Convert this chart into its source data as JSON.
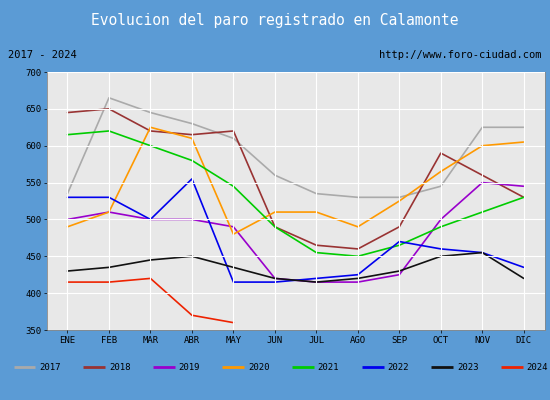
{
  "title": "Evolucion del paro registrado en Calamonte",
  "title_bg": "#5b9bd5",
  "subtitle_left": "2017 - 2024",
  "subtitle_right": "http://www.foro-ciudad.com",
  "months": [
    "ENE",
    "FEB",
    "MAR",
    "ABR",
    "MAY",
    "JUN",
    "JUL",
    "AGO",
    "SEP",
    "OCT",
    "NOV",
    "DIC"
  ],
  "ylim": [
    350,
    700
  ],
  "yticks": [
    350,
    400,
    450,
    500,
    550,
    600,
    650,
    700
  ],
  "series": {
    "2017": {
      "color": "#aaaaaa",
      "data": [
        535,
        665,
        645,
        630,
        610,
        560,
        535,
        530,
        530,
        545,
        625,
        625
      ]
    },
    "2018": {
      "color": "#993333",
      "data": [
        645,
        650,
        620,
        615,
        620,
        490,
        465,
        460,
        490,
        590,
        560,
        530
      ]
    },
    "2019": {
      "color": "#9900cc",
      "data": [
        500,
        510,
        500,
        500,
        490,
        420,
        415,
        415,
        425,
        500,
        550,
        545
      ]
    },
    "2020": {
      "color": "#ff9900",
      "data": [
        490,
        510,
        625,
        610,
        480,
        510,
        510,
        490,
        525,
        565,
        600,
        605
      ]
    },
    "2021": {
      "color": "#00cc00",
      "data": [
        615,
        620,
        600,
        580,
        545,
        490,
        455,
        450,
        465,
        490,
        510,
        530
      ]
    },
    "2022": {
      "color": "#0000ee",
      "data": [
        530,
        530,
        500,
        555,
        415,
        415,
        420,
        425,
        470,
        460,
        455,
        435
      ]
    },
    "2023": {
      "color": "#111111",
      "data": [
        430,
        435,
        445,
        450,
        435,
        420,
        415,
        420,
        430,
        450,
        455,
        420
      ]
    },
    "2024": {
      "color": "#ee2200",
      "data": [
        415,
        415,
        420,
        370,
        360,
        null,
        null,
        null,
        null,
        null,
        null,
        null
      ]
    }
  }
}
